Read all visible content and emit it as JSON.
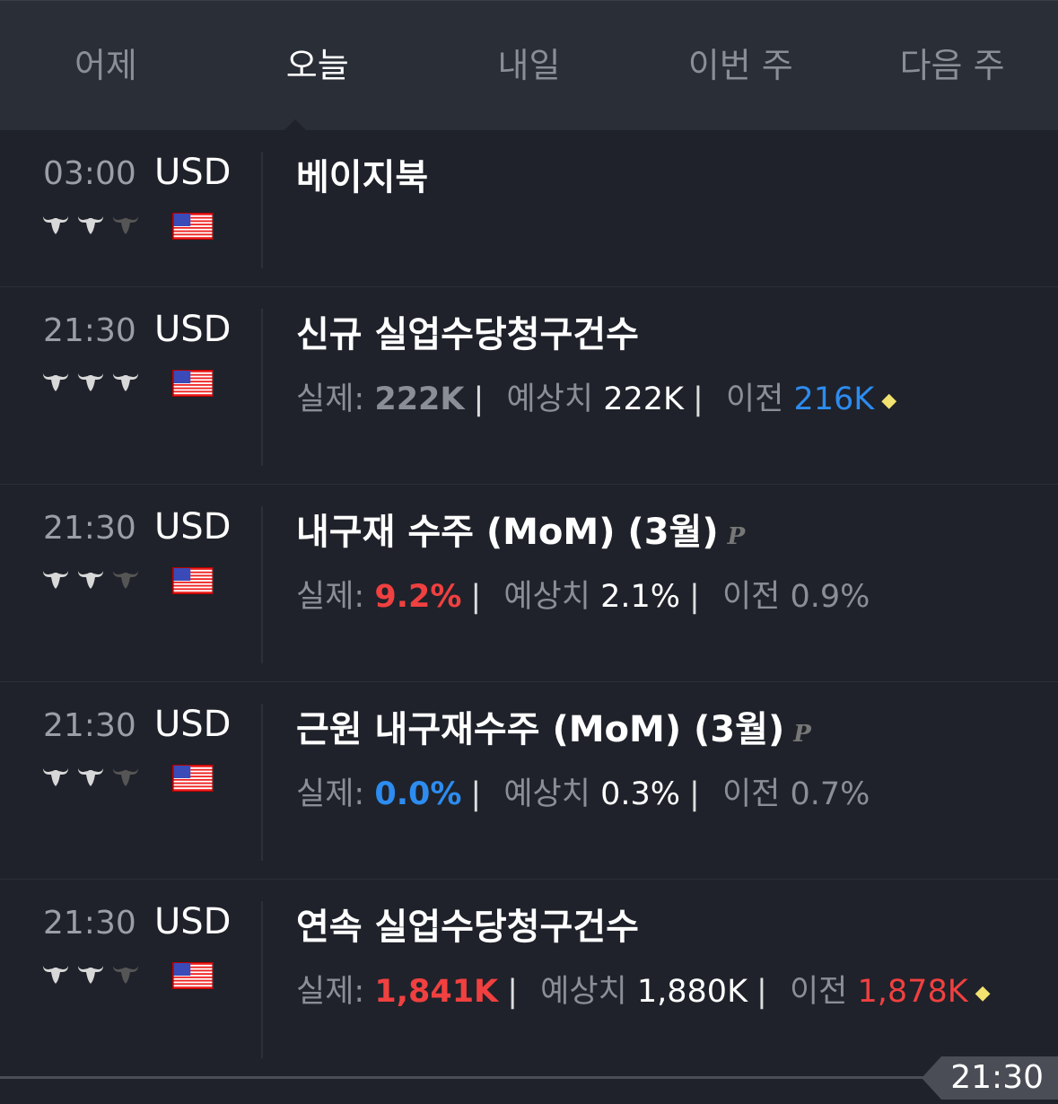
{
  "tabs": [
    "어제",
    "오늘",
    "내일",
    "이번 주",
    "다음 주"
  ],
  "active_tab": 1,
  "events": [
    {
      "time": "03:00",
      "currency": "USD",
      "importance": 2,
      "flag": "us-flag",
      "title": "베이지북",
      "preliminary": false
    },
    {
      "time": "21:30",
      "currency": "USD",
      "importance": 3,
      "flag": "us-flag",
      "title": "신규 실업수당청구건수",
      "preliminary": false,
      "actual_label": "실제:",
      "actual": "222K",
      "forecast_label": "예상치",
      "forecast": "222K",
      "previous_label": "이전",
      "previous": "216K",
      "revised": true
    },
    {
      "time": "21:30",
      "currency": "USD",
      "importance": 2,
      "flag": "us-flag",
      "title": "내구재 수주 (MoM) (3월)",
      "preliminary": true,
      "p_label": "P",
      "actual_label": "실제:",
      "actual": "9.2%",
      "forecast_label": "예상치",
      "forecast": "2.1%",
      "previous_label": "이전",
      "previous": "0.9%",
      "revised": false
    },
    {
      "time": "21:30",
      "currency": "USD",
      "importance": 2,
      "flag": "us-flag",
      "title": "근원 내구재수주 (MoM) (3월)",
      "preliminary": true,
      "p_label": "P",
      "actual_label": "실제:",
      "actual": "0.0%",
      "forecast_label": "예상치",
      "forecast": "0.3%",
      "previous_label": "이전",
      "previous": "0.7%",
      "revised": false
    },
    {
      "time": "21:30",
      "currency": "USD",
      "importance": 2,
      "flag": "us-flag",
      "title": "연속 실업수당청구건수",
      "preliminary": false,
      "actual_label": "실제:",
      "actual": "1,841K",
      "forecast_label": "예상치",
      "forecast": "1,880K",
      "previous_label": "이전",
      "previous": "1,878K",
      "revised": true
    }
  ],
  "value_colors": {
    "actual": [
      "#8a8e96",
      "#f04040",
      "#2d8cf0",
      "#f04040"
    ],
    "previous": [
      "#2d8cf0",
      "#8a8e96",
      "#8a8e96",
      "#f04040"
    ]
  },
  "colors": {
    "red": "#f04040",
    "blue": "#2d8cf0",
    "neutral": "#8a8e96"
  },
  "now_marker": "21:30"
}
